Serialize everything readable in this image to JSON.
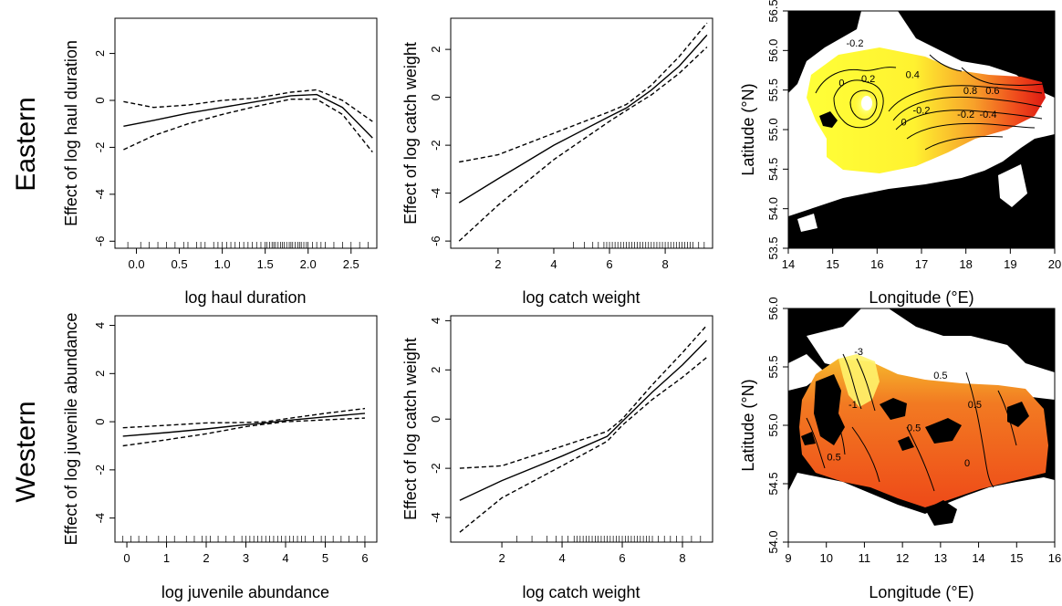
{
  "rows": [
    "Eastern",
    "Western"
  ],
  "chart_data": [
    {
      "type": "line",
      "row": "Eastern",
      "xlabel": "log haul duration",
      "ylabel": "Effect of log haul duration",
      "xlim": [
        -0.25,
        2.8
      ],
      "ylim": [
        -6.3,
        3.5
      ],
      "xticks": [
        0.0,
        0.5,
        1.0,
        1.5,
        2.0,
        2.5
      ],
      "xtick_labels": [
        "0.0",
        "0.5",
        "1.0",
        "1.5",
        "2.0",
        "2.5"
      ],
      "yticks": [
        -6,
        -4,
        -2,
        0,
        2
      ],
      "ytick_labels": [
        "-6",
        "-4",
        "-2",
        "0",
        "2"
      ],
      "series": [
        {
          "role": "fit",
          "x": [
            -0.15,
            0.2,
            0.6,
            1.0,
            1.4,
            1.8,
            2.1,
            2.4,
            2.75
          ],
          "y": [
            -1.1,
            -0.85,
            -0.55,
            -0.3,
            -0.05,
            0.2,
            0.25,
            -0.3,
            -1.6
          ]
        },
        {
          "role": "upper",
          "x": [
            -0.15,
            0.2,
            0.6,
            1.0,
            1.4,
            1.8,
            2.1,
            2.4,
            2.75
          ],
          "y": [
            -0.05,
            -0.3,
            -0.2,
            0.0,
            0.1,
            0.35,
            0.45,
            0.0,
            -0.9
          ]
        },
        {
          "role": "lower",
          "x": [
            -0.15,
            0.2,
            0.6,
            1.0,
            1.4,
            1.8,
            2.1,
            2.4,
            2.75
          ],
          "y": [
            -2.1,
            -1.5,
            -1.0,
            -0.6,
            -0.25,
            0.05,
            0.05,
            -0.6,
            -2.2
          ]
        }
      ],
      "rug": [
        -0.1,
        0.05,
        0.15,
        0.25,
        0.35,
        0.45,
        0.55,
        0.6,
        0.7,
        0.75,
        0.8,
        0.9,
        0.95,
        1.0,
        1.05,
        1.1,
        1.15,
        1.2,
        1.25,
        1.3,
        1.35,
        1.4,
        1.45,
        1.5,
        1.52,
        1.55,
        1.58,
        1.6,
        1.62,
        1.65,
        1.68,
        1.7,
        1.72,
        1.75,
        1.78,
        1.8,
        1.82,
        1.85,
        1.88,
        1.9,
        1.92,
        1.95,
        1.98,
        2.0,
        2.05,
        2.1,
        2.15,
        2.2,
        2.3,
        2.4,
        2.5,
        2.6,
        2.7
      ]
    },
    {
      "type": "line",
      "row": "Eastern",
      "xlabel": "log catch weight",
      "ylabel": "Effect of log catch weight",
      "xlim": [
        0.3,
        9.7
      ],
      "ylim": [
        -6.3,
        3.3
      ],
      "xticks": [
        2,
        4,
        6,
        8
      ],
      "xtick_labels": [
        "2",
        "4",
        "6",
        "8"
      ],
      "yticks": [
        -6,
        -4,
        -2,
        0,
        2
      ],
      "ytick_labels": [
        "-6",
        "-4",
        "-2",
        "0",
        "2"
      ],
      "series": [
        {
          "role": "fit",
          "x": [
            0.6,
            2.0,
            4.0,
            6.0,
            6.6,
            7.5,
            8.5,
            9.5
          ],
          "y": [
            -4.4,
            -3.4,
            -2.0,
            -0.8,
            -0.45,
            0.3,
            1.3,
            2.6
          ]
        },
        {
          "role": "upper",
          "x": [
            0.6,
            2.0,
            4.0,
            6.0,
            6.6,
            7.5,
            8.5,
            9.5
          ],
          "y": [
            -2.7,
            -2.4,
            -1.5,
            -0.6,
            -0.3,
            0.5,
            1.7,
            3.1
          ]
        },
        {
          "role": "lower",
          "x": [
            0.6,
            2.0,
            4.0,
            6.0,
            6.6,
            7.5,
            8.5,
            9.5
          ],
          "y": [
            -6.0,
            -4.5,
            -2.6,
            -1.0,
            -0.55,
            0.1,
            1.0,
            2.1
          ]
        }
      ],
      "rug": [
        4.7,
        5.1,
        5.4,
        5.6,
        5.8,
        5.9,
        6.0,
        6.1,
        6.2,
        6.3,
        6.4,
        6.5,
        6.6,
        6.7,
        6.8,
        6.9,
        7.0,
        7.1,
        7.2,
        7.3,
        7.4,
        7.5,
        7.6,
        7.7,
        7.8,
        7.9,
        8.0,
        8.1,
        8.2,
        8.3,
        8.4,
        8.5,
        8.6,
        8.7,
        8.8,
        8.9,
        9.0,
        9.2,
        9.4
      ]
    },
    {
      "type": "heatmap",
      "row": "Eastern",
      "xlabel": "Longitude (°E)",
      "ylabel": "Latitude (°N)",
      "xlim": [
        14,
        20
      ],
      "ylim": [
        53.5,
        56.5
      ],
      "xticks": [
        14,
        15,
        16,
        17,
        18,
        19,
        20
      ],
      "xtick_labels": [
        "14",
        "15",
        "16",
        "17",
        "18",
        "19",
        "20"
      ],
      "yticks": [
        53.5,
        54.0,
        54.5,
        55.0,
        55.5,
        56.0,
        56.5
      ],
      "ytick_labels": [
        "53.5",
        "54.0",
        "54.5",
        "55.0",
        "55.5",
        "56.0",
        "56.5"
      ],
      "contour_labels": [
        {
          "text": "-0.2",
          "lon": 15.5,
          "lat": 56.05
        },
        {
          "text": "0",
          "lon": 15.2,
          "lat": 55.55
        },
        {
          "text": "0.2",
          "lon": 15.8,
          "lat": 55.6
        },
        {
          "text": "0.4",
          "lon": 16.8,
          "lat": 55.65
        },
        {
          "text": "0",
          "lon": 16.6,
          "lat": 55.05
        },
        {
          "text": "-0.2",
          "lon": 17.0,
          "lat": 55.2
        },
        {
          "text": "-0.2",
          "lon": 18.0,
          "lat": 55.15
        },
        {
          "text": "-0.4",
          "lon": 18.5,
          "lat": 55.15
        },
        {
          "text": "0.8",
          "lon": 18.1,
          "lat": 55.45
        },
        {
          "text": "0.6",
          "lon": 18.6,
          "lat": 55.45
        }
      ]
    },
    {
      "type": "line",
      "row": "Western",
      "xlabel": "log juvenile abundance",
      "ylabel": "Effect of log juvenile abundance",
      "xlim": [
        -0.3,
        6.3
      ],
      "ylim": [
        -5.0,
        4.4
      ],
      "xticks": [
        0,
        1,
        2,
        3,
        4,
        5,
        6
      ],
      "xtick_labels": [
        "0",
        "1",
        "2",
        "3",
        "4",
        "5",
        "6"
      ],
      "yticks": [
        -4,
        -2,
        0,
        2,
        4
      ],
      "ytick_labels": [
        "-4",
        "-2",
        "0",
        "2",
        "4"
      ],
      "series": [
        {
          "role": "fit",
          "x": [
            -0.1,
            1.0,
            2.0,
            3.0,
            3.5,
            4.0,
            5.0,
            6.0
          ],
          "y": [
            -0.6,
            -0.45,
            -0.3,
            -0.12,
            -0.05,
            0.05,
            0.2,
            0.35
          ]
        },
        {
          "role": "upper",
          "x": [
            -0.1,
            1.0,
            2.0,
            3.0,
            3.5,
            4.0,
            5.0,
            6.0
          ],
          "y": [
            -0.25,
            -0.15,
            -0.05,
            -0.03,
            0.0,
            0.12,
            0.35,
            0.55
          ]
        },
        {
          "role": "lower",
          "x": [
            -0.1,
            1.0,
            2.0,
            3.0,
            3.5,
            4.0,
            5.0,
            6.0
          ],
          "y": [
            -1.0,
            -0.75,
            -0.5,
            -0.2,
            -0.1,
            0.0,
            0.08,
            0.15
          ]
        }
      ],
      "rug": [
        -0.1,
        0.1,
        0.3,
        0.5,
        0.8,
        1.0,
        1.2,
        1.5,
        1.7,
        1.9,
        2.0,
        2.1,
        2.3,
        2.5,
        2.7,
        2.9,
        3.0,
        3.1,
        3.2,
        3.3,
        3.4,
        3.5,
        3.6,
        3.7,
        3.8,
        3.9,
        4.0,
        4.1,
        4.2,
        4.3,
        4.4,
        4.5,
        4.7,
        4.9,
        5.0,
        5.2,
        5.4,
        5.6,
        5.8,
        6.0
      ]
    },
    {
      "type": "line",
      "row": "Western",
      "xlabel": "log catch weight",
      "ylabel": "Effect of log catch weight",
      "xlim": [
        0.3,
        9.0
      ],
      "ylim": [
        -5.0,
        4.2
      ],
      "xticks": [
        2,
        4,
        6,
        8
      ],
      "xtick_labels": [
        "2",
        "4",
        "6",
        "8"
      ],
      "yticks": [
        -4,
        -2,
        0,
        2,
        4
      ],
      "ytick_labels": [
        "-4",
        "-2",
        "0",
        "2",
        "4"
      ],
      "series": [
        {
          "role": "fit",
          "x": [
            0.6,
            2.0,
            4.0,
            5.5,
            6.0,
            7.0,
            8.0,
            8.8
          ],
          "y": [
            -3.3,
            -2.5,
            -1.5,
            -0.7,
            -0.1,
            1.1,
            2.2,
            3.2
          ]
        },
        {
          "role": "upper",
          "x": [
            0.6,
            2.0,
            4.0,
            5.5,
            6.0,
            7.0,
            8.0,
            8.8
          ],
          "y": [
            -2.0,
            -1.9,
            -1.1,
            -0.5,
            0.0,
            1.4,
            2.7,
            3.8
          ]
        },
        {
          "role": "lower",
          "x": [
            0.6,
            2.0,
            4.0,
            5.5,
            6.0,
            7.0,
            8.0,
            8.8
          ],
          "y": [
            -4.6,
            -3.2,
            -1.9,
            -0.9,
            -0.25,
            0.8,
            1.7,
            2.5
          ]
        }
      ],
      "rug": [
        2.5,
        3.0,
        3.5,
        3.8,
        4.0,
        4.2,
        4.4,
        4.5,
        4.6,
        4.7,
        4.8,
        4.9,
        5.0,
        5.1,
        5.2,
        5.3,
        5.4,
        5.5,
        5.6,
        5.7,
        5.8,
        5.9,
        6.0,
        6.1,
        6.2,
        6.3,
        6.4,
        6.5,
        6.6,
        6.7,
        6.8,
        6.9,
        7.0,
        7.2,
        7.4,
        7.6,
        7.8,
        8.0,
        8.3,
        8.6
      ]
    },
    {
      "type": "heatmap",
      "row": "Western",
      "xlabel": "Longitude (°E)",
      "ylabel": "Latitude (°N)",
      "xlim": [
        9,
        16
      ],
      "ylim": [
        54.0,
        56.0
      ],
      "xticks": [
        9,
        10,
        11,
        12,
        13,
        14,
        15,
        16
      ],
      "xtick_labels": [
        "9",
        "10",
        "11",
        "12",
        "13",
        "14",
        "15",
        "16"
      ],
      "yticks": [
        54.0,
        54.5,
        55.0,
        55.5,
        56.0
      ],
      "ytick_labels": [
        "54.0",
        "54.5",
        "55.0",
        "55.5",
        "56.0"
      ],
      "contour_labels": [
        {
          "text": "-3",
          "lon": 10.85,
          "lat": 55.6
        },
        {
          "text": "-1",
          "lon": 10.7,
          "lat": 55.15
        },
        {
          "text": "0.5",
          "lon": 9.95,
          "lat": 55.05
        },
        {
          "text": "0.5",
          "lon": 10.2,
          "lat": 54.7
        },
        {
          "text": "0.5",
          "lon": 13.0,
          "lat": 55.4
        },
        {
          "text": "0.5",
          "lon": 13.9,
          "lat": 55.15
        },
        {
          "text": "0.5",
          "lon": 12.3,
          "lat": 54.95
        },
        {
          "text": "0",
          "lon": 13.7,
          "lat": 54.65
        }
      ]
    }
  ]
}
